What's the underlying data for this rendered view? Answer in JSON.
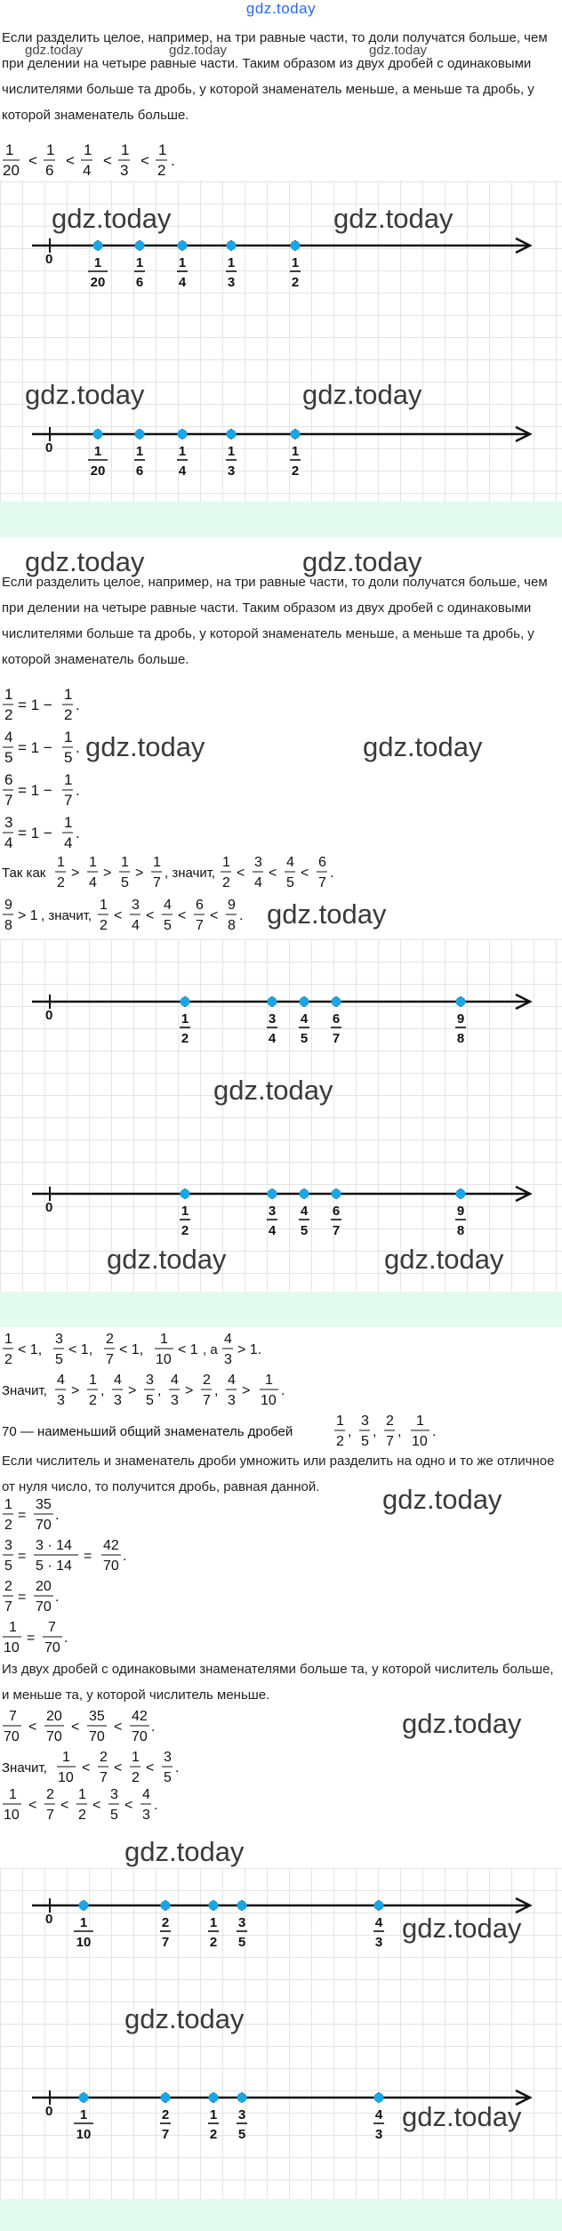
{
  "site_title": "gdz.today",
  "watermark": "gdz.today",
  "section1": {
    "text": "Если разделить целое, например, на три равные части, то доли получатся больше, чем при делении на четыре равные части. Таким образом из двух дробей с одинаковыми числителями больше та дробь, у которой знаменатель меньше, а меньше та дробь, у которой знаменатель больше.",
    "inequality": "1/20 < 1/6 < 1/4 < 1/3 < 1/2.",
    "numberline": {
      "zero": "0",
      "points": [
        {
          "num": "1",
          "den": "20"
        },
        {
          "num": "1",
          "den": "6"
        },
        {
          "num": "1",
          "den": "4"
        },
        {
          "num": "1",
          "den": "3"
        },
        {
          "num": "1",
          "den": "2"
        }
      ]
    }
  },
  "section2": {
    "text": "Если разделить целое, например, на три равные части, то доли получатся больше, чем при делении на четыре равные части. Таким образом из двух дробей с одинаковыми числителями больше та дробь, у которой знаменатель меньше, а меньше та дробь, у которой знаменатель больше.",
    "lines": [
      "1/2 = 1 − 1/2.",
      "4/5 = 1 − 1/5.",
      "6/7 = 1 − 1/7.",
      "3/4 = 1 − 1/4."
    ],
    "since": "Так как 1/2 > 1/4 > 1/5 > 1/7, значит, 1/2 < 3/4 < 4/5 < 6/7.",
    "conclusion": "9/8 > 1, значит, 1/2 < 3/4 < 4/5 < 6/7 < 9/8.",
    "numberline": {
      "zero": "0",
      "points": [
        {
          "num": "1",
          "den": "2"
        },
        {
          "num": "3",
          "den": "4"
        },
        {
          "num": "4",
          "den": "5"
        },
        {
          "num": "6",
          "den": "7"
        },
        {
          "num": "9",
          "den": "8"
        }
      ]
    }
  },
  "section3": {
    "line1": "1/2 < 1, 3/5 < 1, 2/7 < 1, 1/10 < 1, а 4/3 > 1.",
    "line2": "Значит, 4/3 > 1/2, 4/3 > 3/5, 4/3 > 2/7, 4/3 > 1/10.",
    "line3": "70 — наименьший общий знаменатель дробей 1/2, 3/5, 2/7, 1/10.",
    "text1": "Если числитель и знаменатель дроби умножить или разделить на одно и то же отличное от нуля число, то получится дробь, равная данной.",
    "eqs": [
      "1/2 = 35/70.",
      "3/5 = 3·14 / 5·14 = 42/70.",
      "2/7 = 20/70.",
      "1/10 = 7/70."
    ],
    "text2": "Из двух дробей с одинаковыми знаменателями больше та, у которой числитель больше, и меньше та, у которой числитель меньше.",
    "cmp1": "7/70 < 20/70 < 35/70 < 42/70.",
    "cmp2": "Значит, 1/10 < 2/7 < 1/2 < 3/5.",
    "cmp3": "1/10 < 2/7 < 1/2 < 3/5 < 4/3.",
    "numberline": {
      "zero": "0",
      "points": [
        {
          "num": "1",
          "den": "10"
        },
        {
          "num": "2",
          "den": "7"
        },
        {
          "num": "1",
          "den": "2"
        },
        {
          "num": "3",
          "den": "5"
        },
        {
          "num": "4",
          "den": "3"
        }
      ]
    }
  },
  "colors": {
    "point": "#1aa6e6",
    "axis": "#111111",
    "band": "#e2fbee",
    "title": "#2d66ff"
  }
}
